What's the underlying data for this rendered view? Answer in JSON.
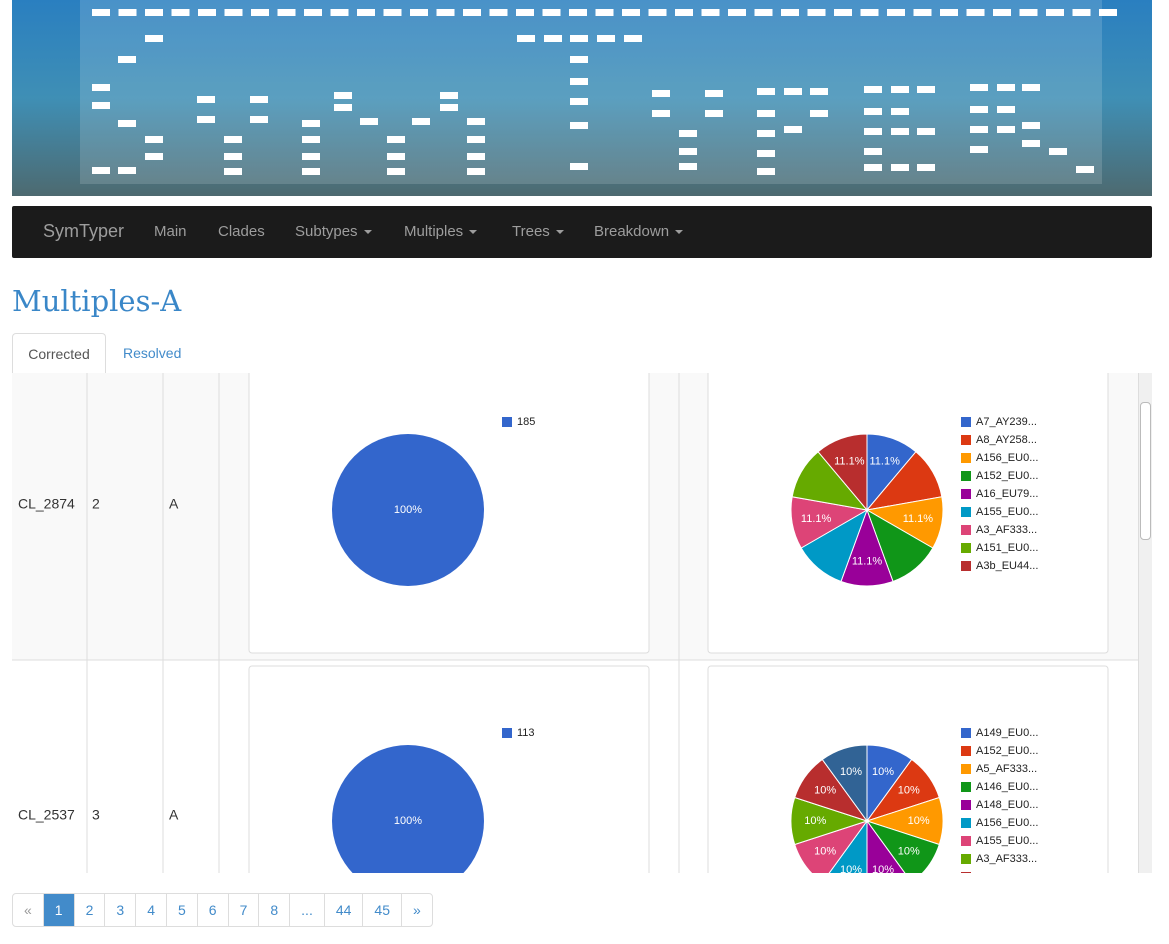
{
  "header": {
    "brand": "SymTyper",
    "nav": [
      "Main",
      "Clades",
      "Subtypes",
      "Multiples",
      "Trees",
      "Breakdown"
    ]
  },
  "page_title": "Multiples-A",
  "tabs": [
    "Corrected",
    "Resolved"
  ],
  "rows": [
    {
      "id": "CL_2874",
      "count": 2,
      "clade": "A",
      "chart_data": [
        {
          "type": "pie",
          "categories": [
            "185"
          ],
          "values": [
            100
          ],
          "value_labels": [
            "100%"
          ],
          "colors": [
            "#3366cc"
          ]
        },
        {
          "type": "pie",
          "categories": [
            "A7_AY239...",
            "A8_AY258...",
            "A156_EU0...",
            "A152_EU0...",
            "A16_EU79...",
            "A155_EU0...",
            "A3_AF333...",
            "A151_EU0...",
            "A3b_EU44..."
          ],
          "values": [
            11.1,
            11.1,
            11.1,
            11.1,
            11.1,
            11.1,
            11.1,
            11.1,
            11.1
          ],
          "value_labels": [
            "11.1%",
            null,
            "11.1%",
            null,
            "11.1%",
            null,
            "11.1%",
            null,
            "11.1%"
          ],
          "colors": [
            "#3366cc",
            "#dc3912",
            "#ff9900",
            "#109618",
            "#990099",
            "#0099c6",
            "#dd4477",
            "#66aa00",
            "#b82e2e"
          ]
        }
      ]
    },
    {
      "id": "CL_2537",
      "count": 3,
      "clade": "A",
      "chart_data": [
        {
          "type": "pie",
          "categories": [
            "113"
          ],
          "values": [
            100
          ],
          "value_labels": [
            "100%"
          ],
          "colors": [
            "#3366cc"
          ]
        },
        {
          "type": "pie",
          "categories": [
            "A149_EU0...",
            "A152_EU0...",
            "A5_AF333...",
            "A146_EU0...",
            "A148_EU0...",
            "A156_EU0...",
            "A155_EU0...",
            "A3_AF333...",
            null,
            null
          ],
          "values": [
            10,
            10,
            10,
            10,
            10,
            10,
            10,
            10,
            10,
            10
          ],
          "value_labels": [
            "10%",
            "10%",
            "10%",
            "10%",
            "10%",
            "10%",
            "10%",
            "10%",
            "10%",
            "10%"
          ],
          "colors": [
            "#3366cc",
            "#dc3912",
            "#ff9900",
            "#109618",
            "#990099",
            "#0099c6",
            "#dd4477",
            "#66aa00",
            "#b82e2e",
            "#316395"
          ]
        }
      ]
    }
  ],
  "pagination": [
    "«",
    "1",
    "2",
    "3",
    "4",
    "5",
    "6",
    "7",
    "8",
    "...",
    "44",
    "45",
    "»"
  ]
}
